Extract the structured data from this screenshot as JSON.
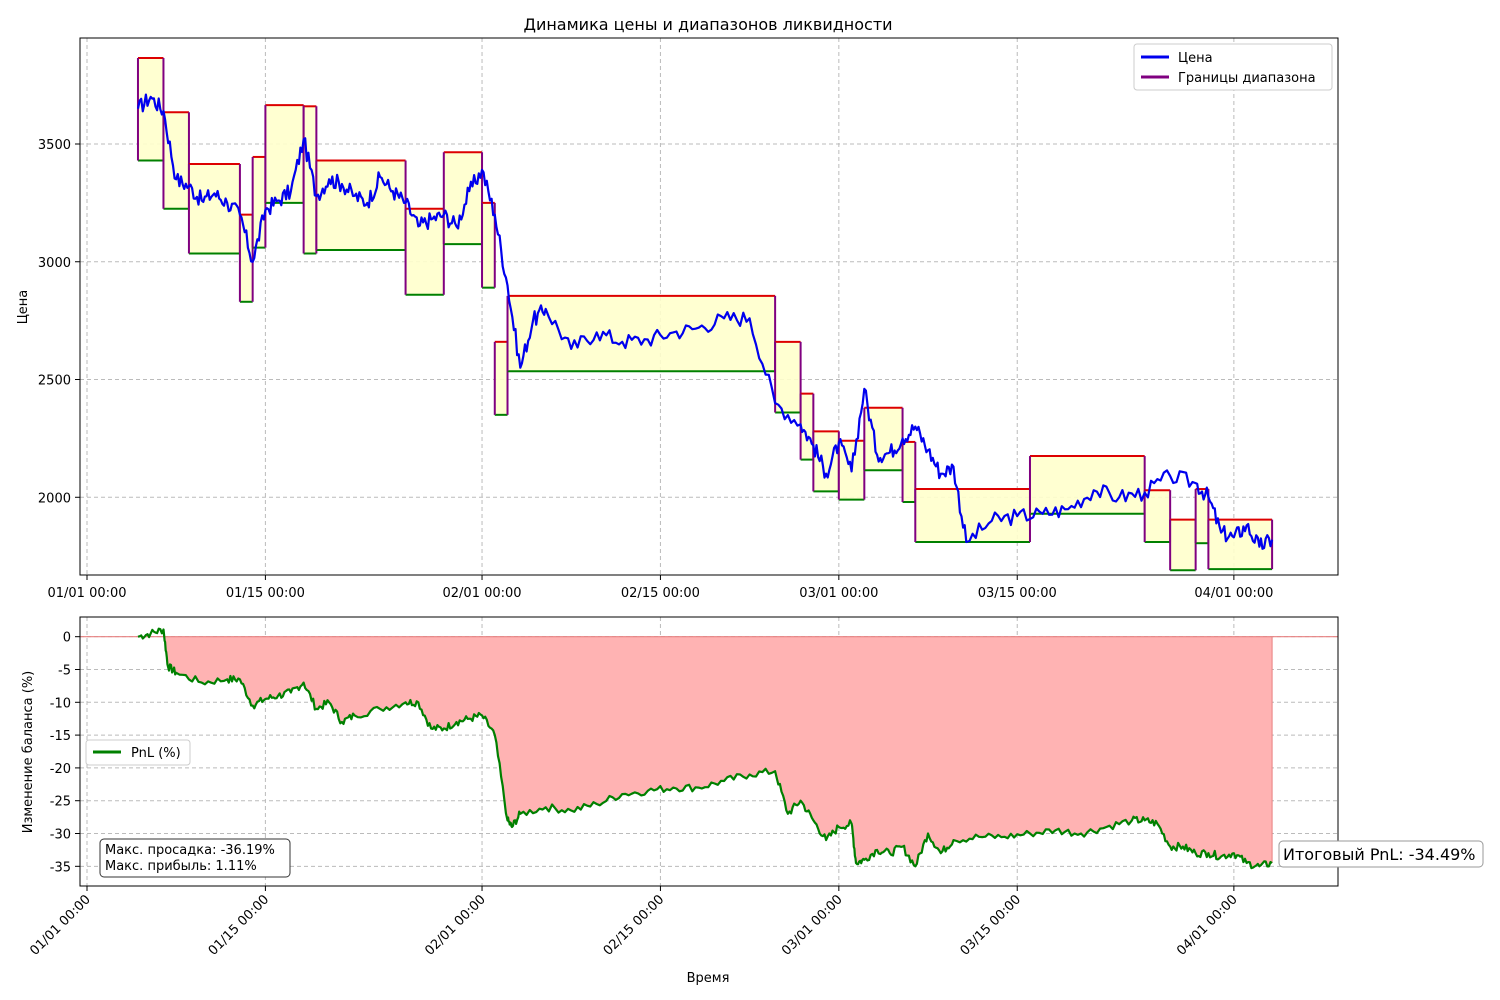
{
  "chart_data": [
    {
      "type": "line",
      "title": "Динамика цены и диапазонов ликвидности",
      "xlabel": "",
      "ylabel": "Цена",
      "xlim": [
        "2024-12-31T12:00",
        "2025-04-16T00:00"
      ],
      "ylim": [
        1670,
        3950
      ],
      "x_ticks": [
        "01/01 00:00",
        "01/15 00:00",
        "02/01 00:00",
        "02/15 00:00",
        "03/01 00:00",
        "03/15 00:00",
        "04/01 00:00"
      ],
      "y_ticks": [
        "2000",
        "2500",
        "3000",
        "3500"
      ],
      "grid": true,
      "legend_position": "top-right",
      "legend": [
        "Цена",
        "Границы диапазона"
      ],
      "colors": {
        "price": "#0000ee",
        "upper": "#dd0000",
        "lower": "#008000",
        "bounds": "#800080",
        "fill": "#ffffcc"
      },
      "series": [
        {
          "name": "Цена",
          "x": [
            "01/05",
            "01/06",
            "01/07",
            "01/08",
            "01/09",
            "01/10",
            "01/11",
            "01/12",
            "01/13",
            "01/14",
            "01/15",
            "01/16",
            "01/17",
            "01/18",
            "01/19",
            "01/20",
            "01/21",
            "01/22",
            "01/23",
            "01/24",
            "01/25",
            "01/26",
            "01/27",
            "01/28",
            "01/29",
            "01/30",
            "01/31",
            "02/01",
            "02/02",
            "02/03",
            "02/04",
            "02/05",
            "02/06",
            "02/08",
            "02/10",
            "02/12",
            "02/14",
            "02/16",
            "02/18",
            "02/20",
            "02/22",
            "02/24",
            "02/26",
            "02/27",
            "02/28",
            "03/01",
            "03/02",
            "03/03",
            "03/04",
            "03/05",
            "03/06",
            "03/07",
            "03/08",
            "03/09",
            "03/10",
            "03/11",
            "03/13",
            "03/15",
            "03/17",
            "03/19",
            "03/21",
            "03/23",
            "03/25",
            "03/27",
            "03/29",
            "03/30",
            "03/31",
            "04/01",
            "04/02",
            "04/03",
            "04/04"
          ],
          "y": [
            3650,
            3700,
            3640,
            3350,
            3320,
            3260,
            3290,
            3250,
            3200,
            3000,
            3220,
            3260,
            3300,
            3520,
            3280,
            3350,
            3330,
            3280,
            3250,
            3360,
            3300,
            3250,
            3150,
            3180,
            3200,
            3150,
            3300,
            3390,
            3200,
            2900,
            2550,
            2750,
            2800,
            2630,
            2700,
            2660,
            2670,
            2700,
            2720,
            2760,
            2760,
            2400,
            2310,
            2220,
            2100,
            2230,
            2110,
            2460,
            2180,
            2190,
            2250,
            2300,
            2200,
            2100,
            2130,
            1810,
            1900,
            1920,
            1930,
            1950,
            2030,
            2000,
            2020,
            2090,
            2060,
            2000,
            1850,
            1830,
            1880,
            1790,
            1820
          ]
        },
        {
          "name": "Границы диапазона",
          "ranges": [
            {
              "start": "01/05",
              "end": "01/07",
              "lower": 3430,
              "upper": 3865
            },
            {
              "start": "01/07",
              "end": "01/09",
              "lower": 3225,
              "upper": 3635
            },
            {
              "start": "01/09",
              "end": "01/13",
              "lower": 3035,
              "upper": 3415
            },
            {
              "start": "01/13",
              "end": "01/14",
              "lower": 2830,
              "upper": 3200
            },
            {
              "start": "01/14",
              "end": "01/15",
              "lower": 3060,
              "upper": 3445
            },
            {
              "start": "01/15",
              "end": "01/18",
              "lower": 3250,
              "upper": 3665
            },
            {
              "start": "01/18",
              "end": "01/19",
              "lower": 3035,
              "upper": 3660
            },
            {
              "start": "01/19",
              "end": "01/26",
              "lower": 3050,
              "upper": 3430
            },
            {
              "start": "01/26",
              "end": "01/29",
              "lower": 2860,
              "upper": 3225
            },
            {
              "start": "01/29",
              "end": "02/01",
              "lower": 3075,
              "upper": 3465
            },
            {
              "start": "02/01",
              "end": "02/02",
              "lower": 2890,
              "upper": 3250
            },
            {
              "start": "02/02",
              "end": "02/03",
              "lower": 2350,
              "upper": 2660
            },
            {
              "start": "02/03",
              "end": "02/24",
              "lower": 2535,
              "upper": 2855
            },
            {
              "start": "02/24",
              "end": "02/26",
              "lower": 2360,
              "upper": 2660
            },
            {
              "start": "02/26",
              "end": "02/27",
              "lower": 2160,
              "upper": 2440
            },
            {
              "start": "02/27",
              "end": "03/01",
              "lower": 2025,
              "upper": 2280
            },
            {
              "start": "03/01",
              "end": "03/03",
              "lower": 1990,
              "upper": 2240
            },
            {
              "start": "03/03",
              "end": "03/06",
              "lower": 2115,
              "upper": 2380
            },
            {
              "start": "03/06",
              "end": "03/07",
              "lower": 1980,
              "upper": 2235
            },
            {
              "start": "03/07",
              "end": "03/16",
              "lower": 1810,
              "upper": 2035
            },
            {
              "start": "03/16",
              "end": "03/25",
              "lower": 1930,
              "upper": 2175
            },
            {
              "start": "03/25",
              "end": "03/27",
              "lower": 1810,
              "upper": 2030
            },
            {
              "start": "03/27",
              "end": "03/29",
              "lower": 1690,
              "upper": 1905
            },
            {
              "start": "03/29",
              "end": "03/30",
              "lower": 1805,
              "upper": 2035
            },
            {
              "start": "03/30",
              "end": "04/04",
              "lower": 1695,
              "upper": 1905
            }
          ]
        }
      ]
    },
    {
      "type": "area",
      "title": "",
      "xlabel": "Время",
      "ylabel": "Изменение баланса (%)",
      "xlim": [
        "2024-12-31T12:00",
        "2025-04-16T00:00"
      ],
      "ylim": [
        -38,
        3
      ],
      "x_ticks": [
        "01/01 00:00",
        "01/15 00:00",
        "02/01 00:00",
        "02/15 00:00",
        "03/01 00:00",
        "03/15 00:00",
        "04/01 00:00"
      ],
      "y_ticks": [
        "0",
        "-5",
        "-10",
        "-15",
        "-20",
        "-25",
        "-30",
        "-35"
      ],
      "grid": true,
      "legend_position": "center-left",
      "legend": [
        "PnL (%)"
      ],
      "colors": {
        "pnl": "#008000",
        "drawdown_fill": "#ffb3b3",
        "zero_line": "#e88080"
      },
      "series": [
        {
          "name": "PnL (%)",
          "x": [
            "01/05",
            "01/06",
            "01/07",
            "01/07b",
            "01/08",
            "01/10",
            "01/12",
            "01/13",
            "01/14",
            "01/15",
            "01/16",
            "01/17",
            "01/18",
            "01/19",
            "01/20",
            "01/21",
            "01/22",
            "01/24",
            "01/26",
            "01/27",
            "01/28",
            "01/29",
            "01/30",
            "01/31",
            "02/01",
            "02/02",
            "02/03",
            "02/03b",
            "02/04",
            "02/06",
            "02/08",
            "02/10",
            "02/12",
            "02/14",
            "02/16",
            "02/18",
            "02/20",
            "02/22",
            "02/24",
            "02/25",
            "02/26",
            "02/27",
            "02/28",
            "03/01",
            "03/02",
            "03/02b",
            "03/03",
            "03/04",
            "03/05",
            "03/06",
            "03/07",
            "03/08",
            "03/09",
            "03/10",
            "03/12",
            "03/14",
            "03/16",
            "03/18",
            "03/20",
            "03/22",
            "03/24",
            "03/25",
            "03/26",
            "03/27",
            "03/28",
            "03/29",
            "03/30",
            "03/31",
            "04/01",
            "04/02",
            "04/03",
            "04/04"
          ],
          "y": [
            0,
            0.5,
            1.1,
            -4.5,
            -5.5,
            -7,
            -6.5,
            -6.5,
            -10.5,
            -9.5,
            -9,
            -8.5,
            -7,
            -11,
            -10,
            -13,
            -12,
            -11,
            -10,
            -10,
            -14,
            -14,
            -13,
            -12.5,
            -12,
            -15,
            -28,
            -29,
            -27,
            -26,
            -26.5,
            -25.5,
            -24,
            -23.5,
            -23,
            -23,
            -22,
            -21,
            -20.5,
            -27,
            -25,
            -28,
            -31,
            -29,
            -28.5,
            -34.5,
            -34,
            -32.5,
            -33,
            -32,
            -35,
            -30,
            -33,
            -31,
            -30.5,
            -30.5,
            -30,
            -29.5,
            -30,
            -29,
            -28,
            -28,
            -28.5,
            -32,
            -32,
            -33,
            -33,
            -33.5,
            -33,
            -34.5,
            -35,
            -34.49
          ]
        }
      ],
      "annotations": {
        "stats_line1": "Макс. просадка: -36.19%",
        "stats_line2": "Макс. прибыль: 1.11%",
        "final": "Итоговый PnL: -34.49%"
      },
      "max_drawdown_pct": -36.19,
      "max_profit_pct": 1.11,
      "final_pnl_pct": -34.49
    }
  ]
}
